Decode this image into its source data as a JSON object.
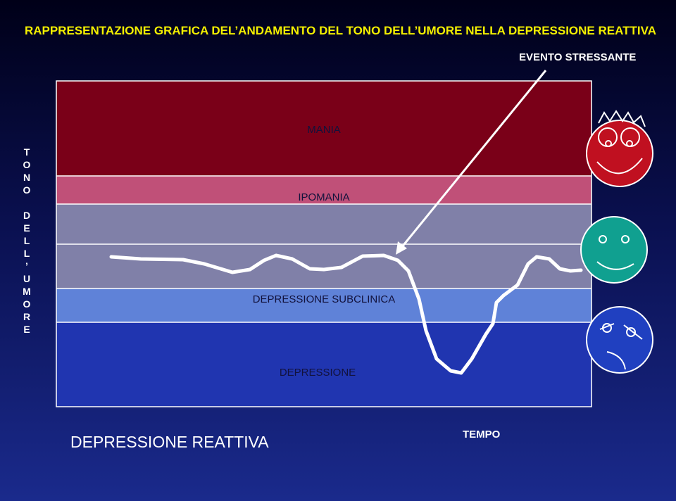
{
  "title": "RAPPRESENTAZIONE GRAFICA DEL’ANDAMENTO DEL TONO DELL’UMORE NELLA DEPRESSIONE REATTIVA",
  "annotation": "EVENTO STRESSANTE",
  "bands": {
    "mania": "MANIA",
    "ipomania": "IPOMANIA",
    "subclinica": "DEPRESSIONE SUBCLINICA",
    "depressione": "DEPRESSIONE"
  },
  "y_axis_label": "TONO DELL’UMORE",
  "x_axis_label": "TEMPO",
  "footer": "DEPRESSIONE REATTIVA"
}
